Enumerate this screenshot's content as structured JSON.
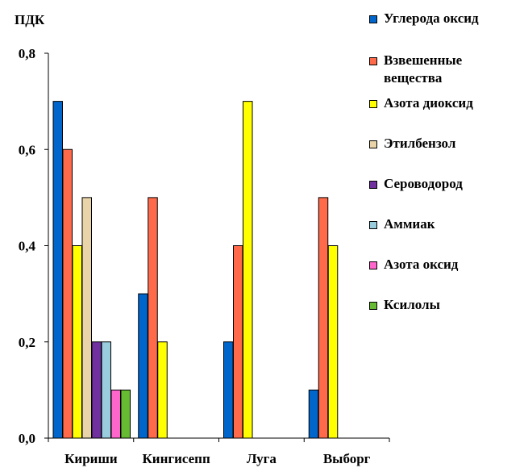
{
  "chart_data": {
    "type": "bar",
    "ylabel": "ПДК",
    "ylim": [
      0,
      0.8
    ],
    "yticks": [
      "0,0",
      "0,2",
      "0,4",
      "0,6",
      "0,8"
    ],
    "ytick_values": [
      0,
      0.2,
      0.4,
      0.6,
      0.8
    ],
    "categories": [
      "Кириши",
      "Кингисепп",
      "Луга",
      "Выборг"
    ],
    "legend_position": "right",
    "series": [
      {
        "name": "Углерода оксид",
        "color": "#0066CC",
        "values": [
          0.7,
          0.3,
          0.2,
          0.1
        ]
      },
      {
        "name": "Взвешенные вещества",
        "color": "#FF6B4A",
        "values": [
          0.6,
          0.5,
          0.4,
          0.5
        ]
      },
      {
        "name": "Азота диоксид",
        "color": "#FFFF00",
        "values": [
          0.4,
          0.2,
          0.7,
          0.4
        ]
      },
      {
        "name": "Этилбензол",
        "color": "#E8D4A8",
        "values": [
          0.5,
          null,
          null,
          null
        ]
      },
      {
        "name": "Сероводород",
        "color": "#7030A0",
        "values": [
          0.2,
          null,
          null,
          null
        ]
      },
      {
        "name": "Аммиак",
        "color": "#99CCDD",
        "values": [
          0.2,
          null,
          null,
          null
        ]
      },
      {
        "name": "Азота оксид",
        "color": "#FF66CC",
        "values": [
          0.1,
          null,
          null,
          null
        ]
      },
      {
        "name": "Ксилолы",
        "color": "#66BB33",
        "values": [
          0.1,
          null,
          null,
          null
        ]
      }
    ]
  }
}
